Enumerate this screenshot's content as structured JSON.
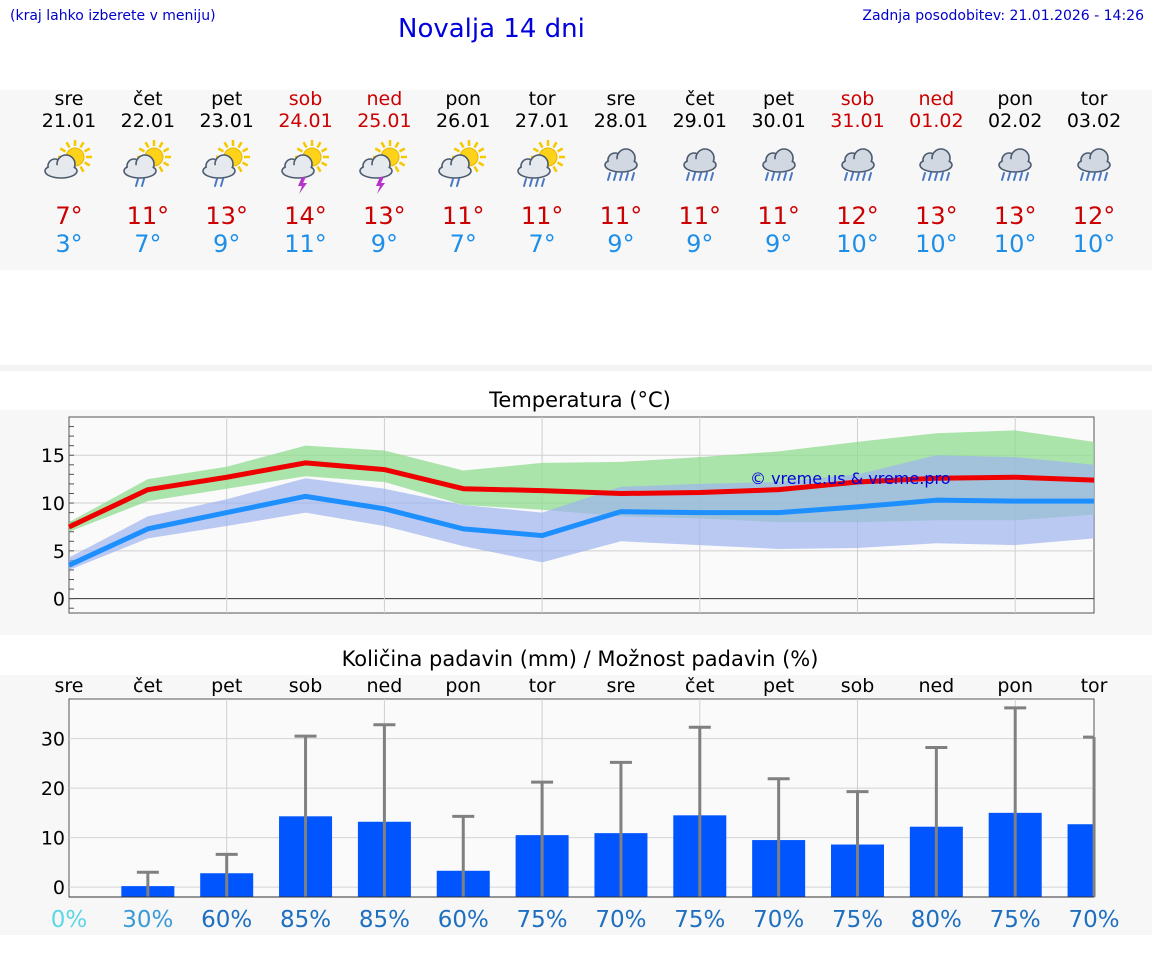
{
  "header": {
    "left_note": "(kraj lahko izberete v meniju)",
    "title": "Novalja 14 dni",
    "updated": "Zadnja posodobitev: 21.01.2026 - 14:26"
  },
  "days": [
    {
      "name": "sre",
      "date": "21.01",
      "max": "7°",
      "min": "3°",
      "weekend": false,
      "icon": "sun-cloud-icon"
    },
    {
      "name": "čet",
      "date": "22.01",
      "max": "11°",
      "min": "7°",
      "weekend": false,
      "icon": "sun-cloud-rain-icon"
    },
    {
      "name": "pet",
      "date": "23.01",
      "max": "13°",
      "min": "9°",
      "weekend": false,
      "icon": "sun-cloud-rain-icon"
    },
    {
      "name": "sob",
      "date": "24.01",
      "max": "14°",
      "min": "11°",
      "weekend": true,
      "icon": "sun-cloud-storm-icon"
    },
    {
      "name": "ned",
      "date": "25.01",
      "max": "13°",
      "min": "9°",
      "weekend": true,
      "icon": "sun-cloud-storm-icon"
    },
    {
      "name": "pon",
      "date": "26.01",
      "max": "11°",
      "min": "7°",
      "weekend": false,
      "icon": "sun-cloud-rain-icon"
    },
    {
      "name": "tor",
      "date": "27.01",
      "max": "11°",
      "min": "7°",
      "weekend": false,
      "icon": "sun-cloud-heavy-rain-icon"
    },
    {
      "name": "sre",
      "date": "28.01",
      "max": "11°",
      "min": "9°",
      "weekend": false,
      "icon": "cloud-rain-icon"
    },
    {
      "name": "čet",
      "date": "29.01",
      "max": "11°",
      "min": "9°",
      "weekend": false,
      "icon": "cloud-rain-icon"
    },
    {
      "name": "pet",
      "date": "30.01",
      "max": "11°",
      "min": "9°",
      "weekend": false,
      "icon": "cloud-rain-icon"
    },
    {
      "name": "sob",
      "date": "31.01",
      "max": "12°",
      "min": "10°",
      "weekend": true,
      "icon": "cloud-rain-icon"
    },
    {
      "name": "ned",
      "date": "01.02",
      "max": "13°",
      "min": "10°",
      "weekend": true,
      "icon": "cloud-rain-icon"
    },
    {
      "name": "pon",
      "date": "02.02",
      "max": "13°",
      "min": "10°",
      "weekend": false,
      "icon": "cloud-rain-icon"
    },
    {
      "name": "tor",
      "date": "03.02",
      "max": "12°",
      "min": "10°",
      "weekend": false,
      "icon": "cloud-rain-icon"
    }
  ],
  "colors": {
    "max_line": "#ee0000",
    "min_line": "#1e8fff",
    "max_band": "#8fdc8f",
    "min_band": "#9db4ee",
    "bar": "#0055ff",
    "whisker": "#808080",
    "watermark": "#0000dd"
  },
  "chart_data": [
    {
      "type": "line",
      "title": "Temperatura (°C)",
      "watermark": "© vreme.us & vreme.pro",
      "ylim": [
        -1.5,
        19
      ],
      "yticks": [
        0,
        5,
        10,
        15
      ],
      "x": [
        0,
        1,
        2,
        3,
        4,
        5,
        6,
        7,
        8,
        9,
        10,
        11,
        12,
        13
      ],
      "series": [
        {
          "name": "max",
          "values": [
            7.5,
            11.4,
            12.7,
            14.2,
            13.5,
            11.5,
            11.3,
            11.0,
            11.1,
            11.4,
            12.2,
            12.6,
            12.7,
            12.4
          ],
          "band_low": [
            7.0,
            10.2,
            11.5,
            12.8,
            12.2,
            9.8,
            9.3,
            8.6,
            8.4,
            8.0,
            8.0,
            8.2,
            8.2,
            8.8
          ],
          "band_high": [
            8.0,
            12.5,
            13.8,
            16.0,
            15.5,
            13.4,
            14.2,
            14.3,
            14.8,
            15.4,
            16.4,
            17.3,
            17.6,
            16.4
          ]
        },
        {
          "name": "min",
          "values": [
            3.5,
            7.3,
            9.0,
            10.7,
            9.4,
            7.3,
            6.6,
            9.1,
            9.0,
            9.0,
            9.6,
            10.3,
            10.2,
            10.2
          ],
          "band_low": [
            3.0,
            6.3,
            7.6,
            9.0,
            7.6,
            5.5,
            3.8,
            6.0,
            5.6,
            5.2,
            5.3,
            5.8,
            5.6,
            6.3
          ],
          "band_high": [
            4.3,
            8.6,
            10.4,
            12.6,
            11.5,
            9.8,
            9.0,
            11.7,
            12.0,
            12.2,
            13.0,
            15.0,
            14.8,
            14.0
          ]
        }
      ]
    },
    {
      "type": "bar",
      "title": "Količina padavin (mm) / Možnost padavin (%)",
      "ylim": [
        -2,
        38
      ],
      "yticks": [
        0,
        10,
        20,
        30
      ],
      "categories": [
        "sre",
        "čet",
        "pet",
        "sob",
        "ned",
        "pon",
        "tor",
        "sre",
        "čet",
        "pet",
        "sob",
        "ned",
        "pon",
        "tor"
      ],
      "values": [
        0,
        0.2,
        2.8,
        14.3,
        13.2,
        3.3,
        10.5,
        10.9,
        14.5,
        9.5,
        8.6,
        12.2,
        15.0,
        12.7
      ],
      "whisker_max": [
        0,
        3.0,
        6.6,
        30.5,
        32.8,
        14.3,
        21.2,
        25.2,
        32.3,
        21.9,
        19.3,
        28.2,
        36.2,
        30.3
      ],
      "probability_labels": [
        "0%",
        "30%",
        "60%",
        "85%",
        "85%",
        "60%",
        "75%",
        "70%",
        "75%",
        "70%",
        "75%",
        "80%",
        "75%",
        "70%"
      ],
      "probability_colors": [
        "#5dd6e6",
        "#3a9ad6",
        "#1e6fc0",
        "#1e6fc0",
        "#1e6fc0",
        "#1e6fc0",
        "#1e6fc0",
        "#1e6fc0",
        "#1e6fc0",
        "#1e6fc0",
        "#1e6fc0",
        "#1e6fc0",
        "#1e6fc0",
        "#1e6fc0"
      ]
    }
  ]
}
